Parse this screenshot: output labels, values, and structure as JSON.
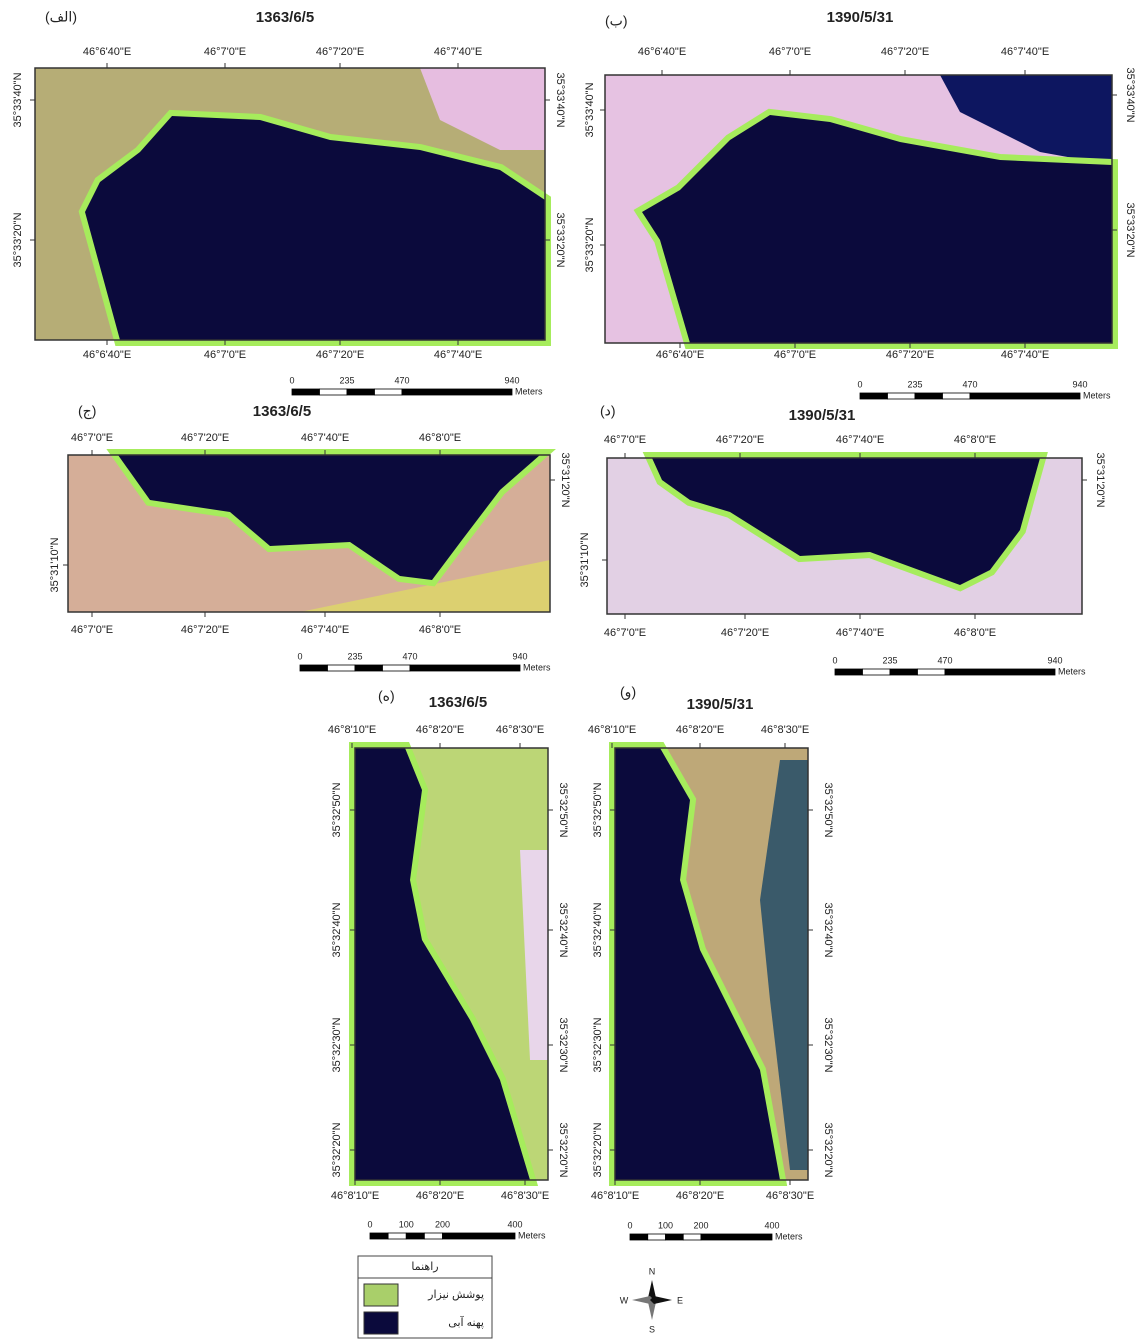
{
  "panels": [
    {
      "label": "(الف)",
      "date": "1363/6/5",
      "top_ticks": [
        "46°6'40\"E",
        "46°7'0\"E",
        "46°7'20\"E",
        "46°7'40\"E"
      ],
      "bottom_ticks": [
        "46°6'40\"E",
        "46°7'0\"E",
        "46°7'20\"E",
        "46°7'40\"E"
      ],
      "left_ticks": [
        "35°33'40\"N",
        "35°33'20\"N"
      ],
      "right_ticks": [
        "35°33'40\"N",
        "35°33'20\"N"
      ],
      "scale": {
        "ticks": [
          "0",
          "235",
          "470",
          "940"
        ],
        "unit": "Meters"
      }
    },
    {
      "label": "(ب)",
      "date": "1390/5/31",
      "top_ticks": [
        "46°6'40\"E",
        "46°7'0\"E",
        "46°7'20\"E",
        "46°7'40\"E"
      ],
      "bottom_ticks": [
        "46°6'40\"E",
        "46°7'0\"E",
        "46°7'20\"E",
        "46°7'40\"E"
      ],
      "left_ticks": [
        "35°33'40\"N",
        "35°33'20\"N"
      ],
      "right_ticks": [
        "35°33'40\"N",
        "35°33'20\"N"
      ],
      "scale": {
        "ticks": [
          "0",
          "235",
          "470",
          "940"
        ],
        "unit": "Meters"
      }
    },
    {
      "label": "(ج)",
      "date": "1363/6/5",
      "top_ticks": [
        "46°7'0\"E",
        "46°7'20\"E",
        "46°7'40\"E",
        "46°8'0\"E"
      ],
      "bottom_ticks": [
        "46°7'0\"E",
        "46°7'20\"E",
        "46°7'40\"E",
        "46°8'0\"E"
      ],
      "left_ticks": [
        "35°31'10\"N"
      ],
      "right_ticks": [
        "35°31'20\"N"
      ],
      "scale": {
        "ticks": [
          "0",
          "235",
          "470",
          "940"
        ],
        "unit": "Meters"
      }
    },
    {
      "label": "(د)",
      "date": "1390/5/31",
      "top_ticks": [
        "46°7'0\"E",
        "46°7'20\"E",
        "46°7'40\"E",
        "46°8'0\"E"
      ],
      "bottom_ticks": [
        "46°7'0\"E",
        "46°7'20\"E",
        "46°7'40\"E",
        "46°8'0\"E"
      ],
      "left_ticks": [
        "35°31'10\"N"
      ],
      "right_ticks": [
        "35°31'20\"N"
      ],
      "scale": {
        "ticks": [
          "0",
          "235",
          "470",
          "940"
        ],
        "unit": "Meters"
      }
    },
    {
      "label": "(ه)",
      "date": "1363/6/5",
      "top_ticks": [
        "46°8'10\"E",
        "46°8'20\"E",
        "46°8'30\"E"
      ],
      "bottom_ticks": [
        "46°8'10\"E",
        "46°8'20\"E",
        "46°8'30\"E"
      ],
      "left_ticks": [
        "35°32'50\"N",
        "35°32'40\"N",
        "35°32'30\"N",
        "35°32'20\"N"
      ],
      "right_ticks": [
        "35°32'50\"N",
        "35°32'40\"N",
        "35°32'30\"N",
        "35°32'20\"N"
      ],
      "scale": {
        "ticks": [
          "0",
          "100",
          "200",
          "400"
        ],
        "unit": "Meters"
      }
    },
    {
      "label": "(و)",
      "date": "1390/5/31",
      "top_ticks": [
        "46°8'10\"E",
        "46°8'20\"E",
        "46°8'30\"E"
      ],
      "bottom_ticks": [
        "46°8'10\"E",
        "46°8'20\"E",
        "46°8'30\"E"
      ],
      "left_ticks": [
        "35°32'50\"N",
        "35°32'40\"N",
        "35°32'30\"N",
        "35°32'20\"N"
      ],
      "right_ticks": [
        "35°32'50\"N",
        "35°32'40\"N",
        "35°32'30\"N",
        "35°32'20\"N"
      ],
      "scale": {
        "ticks": [
          "0",
          "100",
          "200",
          "400"
        ],
        "unit": "Meters"
      }
    }
  ],
  "legend": {
    "title": "راهنما",
    "items": [
      {
        "label": "پوشش نیزار"
      },
      {
        "label": "پهنه آبی"
      }
    ]
  },
  "compass": {
    "n": "N",
    "e": "E",
    "s": "S",
    "w": "W"
  }
}
